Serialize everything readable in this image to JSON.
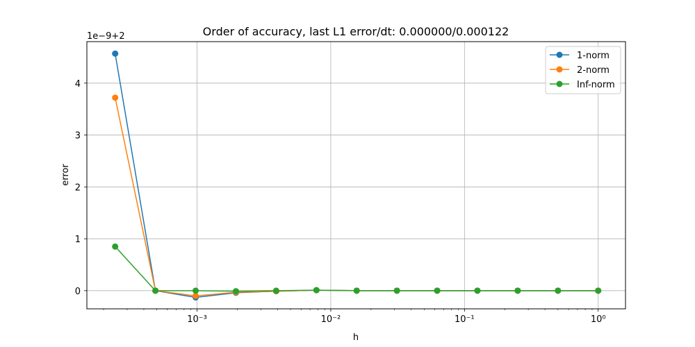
{
  "chart_data": {
    "type": "line",
    "title": "Order of accuracy, last L1 error/dt: 0.000000/0.000122",
    "xlabel": "h",
    "ylabel": "error",
    "y_offset_label": "1e−9+2",
    "xscale": "log",
    "xlim": [
      0.00015,
      1.6
    ],
    "ylim": [
      -0.35,
      4.8
    ],
    "x_ticks": [
      {
        "value": 0.001,
        "label": "10⁻³"
      },
      {
        "value": 0.01,
        "label": "10⁻²"
      },
      {
        "value": 0.1,
        "label": "10⁻¹"
      },
      {
        "value": 1,
        "label": "10⁰"
      }
    ],
    "y_ticks": [
      {
        "value": 0,
        "label": "0"
      },
      {
        "value": 1,
        "label": "1"
      },
      {
        "value": 2,
        "label": "2"
      },
      {
        "value": 3,
        "label": "3"
      },
      {
        "value": 4,
        "label": "4"
      }
    ],
    "grid": true,
    "legend_position": "top-right",
    "x": [
      0.000244140625,
      0.00048828125,
      0.0009765625,
      0.001953125,
      0.00390625,
      0.0078125,
      0.015625,
      0.03125,
      0.0625,
      0.125,
      0.25,
      0.5,
      1
    ],
    "series": [
      {
        "name": "1-norm",
        "color": "#1f77b4",
        "values": [
          4.57,
          0.0,
          -0.13,
          -0.04,
          -0.01,
          0.01,
          0.0,
          0.0,
          0.0,
          0.0,
          0.0,
          0.0,
          0.0
        ]
      },
      {
        "name": "2-norm",
        "color": "#ff7f0e",
        "values": [
          3.72,
          0.0,
          -0.1,
          -0.03,
          -0.01,
          0.01,
          0.0,
          0.0,
          0.0,
          0.0,
          0.0,
          0.0,
          0.0
        ]
      },
      {
        "name": "Inf-norm",
        "color": "#2ca02c",
        "values": [
          0.85,
          0.0,
          0.0,
          -0.01,
          0.0,
          0.01,
          0.0,
          0.0,
          0.0,
          0.0,
          0.0,
          0.0,
          0.0
        ]
      }
    ]
  }
}
